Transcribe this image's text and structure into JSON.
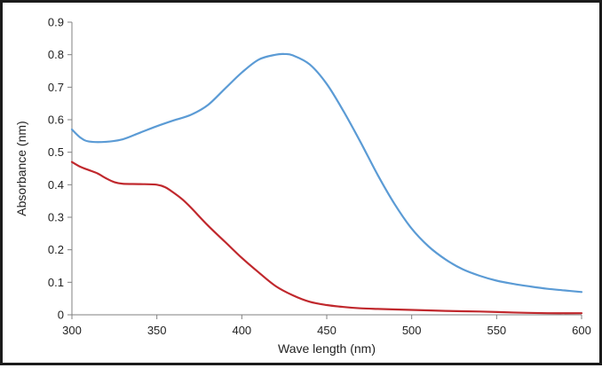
{
  "chart_data": {
    "type": "line",
    "title": "",
    "xlabel": "Wave length (nm)",
    "ylabel": "Absorbance (nm)",
    "xlim": [
      300,
      600
    ],
    "ylim": [
      0,
      0.9
    ],
    "xticks": [
      "300",
      "350",
      "400",
      "450",
      "500",
      "550",
      "600"
    ],
    "yticks": [
      "0",
      "0.1",
      "0.2",
      "0.3",
      "0.4",
      "0.5",
      "0.6",
      "0.7",
      "0.8",
      "0.9"
    ],
    "grid": false,
    "legend": "none",
    "series": [
      {
        "name": "blue curve",
        "color": "#5b9bd5",
        "x": [
          300,
          305,
          310,
          320,
          330,
          340,
          350,
          360,
          370,
          380,
          390,
          400,
          410,
          420,
          425,
          430,
          440,
          450,
          460,
          470,
          480,
          490,
          500,
          510,
          520,
          530,
          540,
          550,
          560,
          570,
          580,
          590,
          600
        ],
        "y": [
          0.57,
          0.545,
          0.533,
          0.532,
          0.54,
          0.56,
          0.58,
          0.598,
          0.615,
          0.645,
          0.695,
          0.745,
          0.785,
          0.8,
          0.802,
          0.798,
          0.77,
          0.71,
          0.625,
          0.53,
          0.43,
          0.34,
          0.265,
          0.21,
          0.17,
          0.14,
          0.12,
          0.105,
          0.095,
          0.087,
          0.08,
          0.075,
          0.07
        ]
      },
      {
        "name": "red curve",
        "color": "#c0282d",
        "x": [
          300,
          305,
          310,
          315,
          320,
          325,
          330,
          340,
          350,
          355,
          360,
          365,
          370,
          380,
          390,
          400,
          410,
          420,
          430,
          440,
          450,
          460,
          470,
          480,
          500,
          520,
          540,
          560,
          580,
          600
        ],
        "y": [
          0.47,
          0.455,
          0.445,
          0.435,
          0.42,
          0.408,
          0.403,
          0.402,
          0.4,
          0.392,
          0.375,
          0.355,
          0.33,
          0.275,
          0.225,
          0.175,
          0.13,
          0.088,
          0.06,
          0.04,
          0.03,
          0.024,
          0.02,
          0.018,
          0.015,
          0.012,
          0.01,
          0.007,
          0.005,
          0.005
        ]
      }
    ]
  }
}
